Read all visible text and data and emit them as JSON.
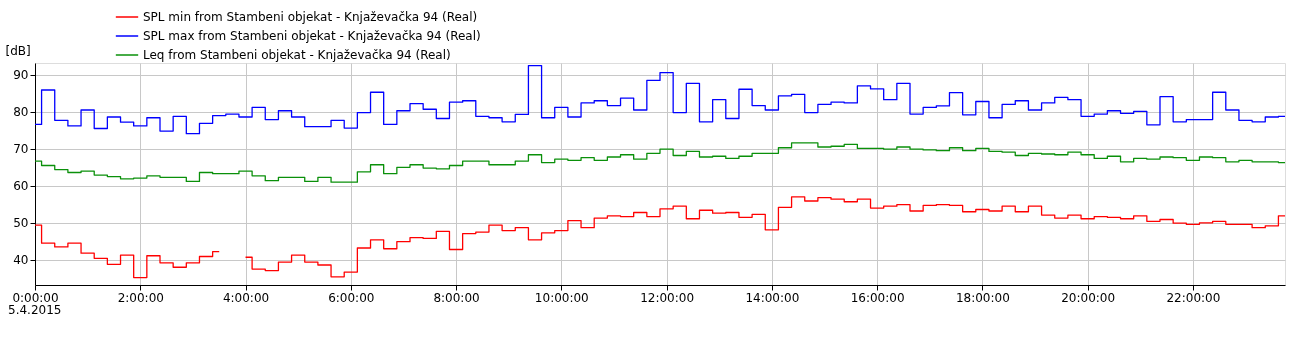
{
  "chart_data": {
    "type": "step",
    "ylabel": "[dB]",
    "legend": "top left",
    "grid": true,
    "annotations": [
      "5.4.2015"
    ],
    "xlim": [
      0,
      23.75
    ],
    "ylim": [
      33.2,
      93.2
    ],
    "xticks": [
      {
        "value": 0,
        "label": "0:00:00"
      },
      {
        "value": 2,
        "label": "2:00:00"
      },
      {
        "value": 4,
        "label": "4:00:00"
      },
      {
        "value": 6,
        "label": "6:00:00"
      },
      {
        "value": 8,
        "label": "8:00:00"
      },
      {
        "value": 10,
        "label": "10:00:00"
      },
      {
        "value": 12,
        "label": "12:00:00"
      },
      {
        "value": 14,
        "label": "14:00:00"
      },
      {
        "value": 16,
        "label": "16:00:00"
      },
      {
        "value": 18,
        "label": "18:00:00"
      },
      {
        "value": 20,
        "label": "20:00:00"
      },
      {
        "value": 22,
        "label": "22:00:00"
      }
    ],
    "yticks": [
      40,
      50,
      60,
      70,
      80,
      90
    ],
    "x": [
      0,
      0.25,
      0.5,
      0.75,
      1,
      1.25,
      1.5,
      1.75,
      2,
      2.25,
      2.5,
      2.75,
      3,
      3.25,
      3.5,
      3.75,
      4,
      4.25,
      4.5,
      4.75,
      5,
      5.25,
      5.5,
      5.75,
      6,
      6.25,
      6.5,
      6.75,
      7,
      7.25,
      7.5,
      7.75,
      8,
      8.25,
      8.5,
      8.75,
      9,
      9.25,
      9.5,
      9.75,
      10,
      10.25,
      10.5,
      10.75,
      11,
      11.25,
      11.5,
      11.75,
      12,
      12.25,
      12.5,
      12.75,
      13,
      13.25,
      13.5,
      13.75,
      14,
      14.25,
      14.5,
      14.75,
      15,
      15.25,
      15.5,
      15.75,
      16,
      16.25,
      16.5,
      16.75,
      17,
      17.25,
      17.5,
      17.75,
      18,
      18.25,
      18.5,
      18.75,
      19,
      19.25,
      19.5,
      19.75,
      20,
      20.25,
      20.5,
      20.75,
      21,
      21.25,
      21.5,
      21.75,
      22,
      22.25,
      22.5,
      22.75,
      23,
      23.25,
      23.5,
      23.75
    ],
    "series": [
      {
        "name": "SPL min from Stambeni objekat - Knjaževačka 94 (Real)",
        "color": "#ff0000",
        "values": [
          49.4,
          44.5,
          43.5,
          44.5,
          41.8,
          40.4,
          38.8,
          41.3,
          35.2,
          41.1,
          39.2,
          38.0,
          39.2,
          40.9,
          42.2,
          null,
          40.7,
          37.5,
          37.1,
          39.4,
          41.3,
          39.4,
          38.6,
          35.4,
          36.7,
          43.2,
          45.4,
          43.0,
          44.9,
          46.0,
          45.8,
          47.7,
          42.8,
          47.1,
          47.5,
          49.4,
          47.9,
          48.7,
          45.4,
          47.3,
          47.9,
          50.6,
          48.7,
          51.3,
          51.9,
          51.7,
          52.8,
          51.7,
          53.8,
          54.5,
          51.1,
          53.4,
          52.6,
          52.8,
          51.5,
          52.3,
          48.1,
          54.2,
          57.0,
          55.9,
          56.8,
          56.4,
          55.7,
          56.4,
          54.0,
          54.5,
          54.9,
          53.2,
          54.7,
          54.9,
          54.7,
          53.0,
          53.6,
          53.2,
          54.5,
          53.0,
          54.5,
          52.1,
          51.3,
          52.1,
          51.1,
          51.7,
          51.5,
          51.1,
          51.9,
          50.4,
          50.9,
          49.9,
          49.6,
          50.0,
          50.4,
          49.6,
          49.6,
          48.7,
          49.2,
          51.9
        ]
      },
      {
        "name": "SPL max from Stambeni objekat - Knjaževačka 94 (Real)",
        "color": "#0000ff",
        "values": [
          76.6,
          85.9,
          77.7,
          76.2,
          80.5,
          75.5,
          78.6,
          77.2,
          76.2,
          78.4,
          74.8,
          78.8,
          74.1,
          76.9,
          79.0,
          79.4,
          78.6,
          81.2,
          77.9,
          80.3,
          78.6,
          76.0,
          76.0,
          77.7,
          75.6,
          79.8,
          85.3,
          76.6,
          80.3,
          82.2,
          80.7,
          78.2,
          82.6,
          83.0,
          78.8,
          78.4,
          77.3,
          79.3,
          92.5,
          78.4,
          81.2,
          78.6,
          82.4,
          83.0,
          81.7,
          83.7,
          80.5,
          88.5,
          90.6,
          79.8,
          87.7,
          77.3,
          83.3,
          78.2,
          86.1,
          81.7,
          80.5,
          84.3,
          84.7,
          79.8,
          82.0,
          82.6,
          82.4,
          87.0,
          86.2,
          83.3,
          87.7,
          79.4,
          81.2,
          81.6,
          85.2,
          79.2,
          82.8,
          78.4,
          82.0,
          83.0,
          80.5,
          82.4,
          83.9,
          83.3,
          78.8,
          79.4,
          80.3,
          79.6,
          80.1,
          76.5,
          84.1,
          77.3,
          77.9,
          77.9,
          85.3,
          80.5,
          77.7,
          77.3,
          78.6,
          78.8
        ]
      },
      {
        "name": "Leq from Stambeni objekat - Knjaževačka 94 (Real)",
        "color": "#0a900a",
        "values": [
          66.7,
          65.5,
          64.4,
          63.6,
          64.0,
          62.9,
          62.5,
          61.9,
          62.1,
          62.7,
          62.3,
          62.3,
          61.2,
          63.6,
          63.3,
          63.3,
          64.0,
          62.7,
          61.4,
          62.3,
          62.3,
          61.2,
          62.3,
          61.0,
          61.0,
          63.8,
          65.7,
          63.3,
          65.0,
          65.7,
          64.8,
          64.6,
          65.5,
          66.7,
          66.7,
          65.7,
          65.7,
          66.7,
          68.4,
          66.3,
          67.2,
          66.9,
          67.6,
          66.9,
          67.8,
          68.4,
          67.2,
          68.8,
          69.9,
          68.2,
          69.3,
          67.8,
          68.0,
          67.4,
          68.0,
          68.8,
          68.8,
          70.3,
          71.6,
          71.6,
          70.5,
          70.7,
          71.2,
          70.1,
          70.1,
          69.9,
          70.5,
          69.9,
          69.7,
          69.5,
          70.3,
          69.5,
          70.1,
          69.3,
          69.1,
          68.2,
          68.8,
          68.6,
          68.4,
          69.1,
          68.4,
          67.4,
          68.0,
          66.5,
          67.4,
          67.2,
          67.8,
          67.6,
          66.9,
          67.8,
          67.6,
          66.5,
          66.9,
          66.5,
          66.5,
          66.3
        ]
      }
    ]
  }
}
